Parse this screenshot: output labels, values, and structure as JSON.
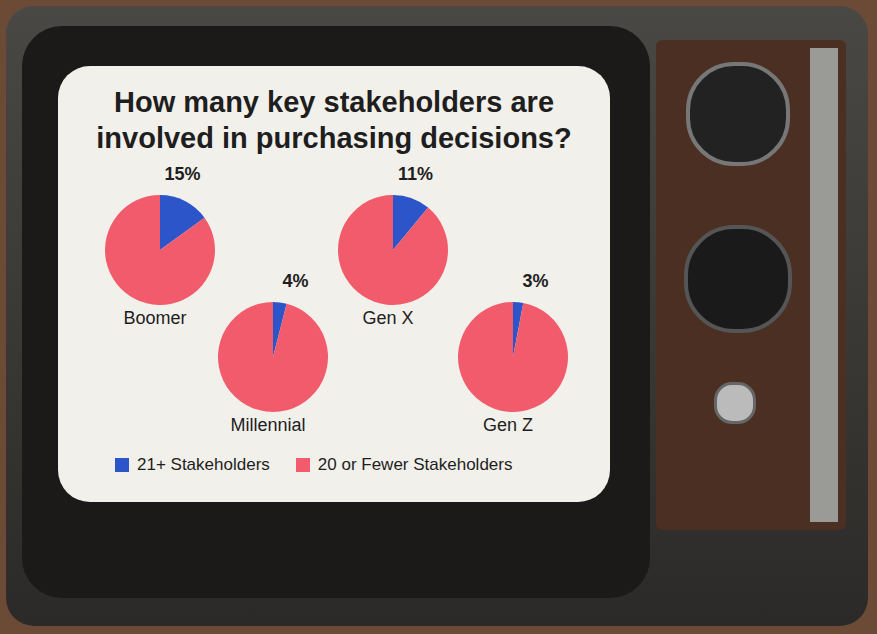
{
  "title": "How many key stakeholders are involved in purchasing decisions?",
  "legend": "bottom",
  "chart_data": [
    {
      "type": "pie",
      "title": "Boomer",
      "categories": [
        "21+ Stakeholders",
        "20 or Fewer Stakeholders"
      ],
      "values": [
        15,
        85
      ],
      "value_labels": [
        "15%",
        null
      ],
      "colors": [
        "#2c55c9",
        "#f25b6c"
      ]
    },
    {
      "type": "pie",
      "title": "Millennial",
      "categories": [
        "21+ Stakeholders",
        "20 or Fewer Stakeholders"
      ],
      "values": [
        4,
        96
      ],
      "value_labels": [
        "4%",
        null
      ],
      "colors": [
        "#2c55c9",
        "#f25b6c"
      ]
    },
    {
      "type": "pie",
      "title": "Gen X",
      "categories": [
        "21+ Stakeholders",
        "20 or Fewer Stakeholders"
      ],
      "values": [
        11,
        89
      ],
      "value_labels": [
        "11%",
        null
      ],
      "colors": [
        "#2c55c9",
        "#f25b6c"
      ]
    },
    {
      "type": "pie",
      "title": "Gen Z",
      "categories": [
        "21+ Stakeholders",
        "20 or Fewer Stakeholders"
      ],
      "values": [
        3,
        97
      ],
      "value_labels": [
        "3%",
        null
      ],
      "colors": [
        "#2c55c9",
        "#f25b6c"
      ]
    }
  ]
}
